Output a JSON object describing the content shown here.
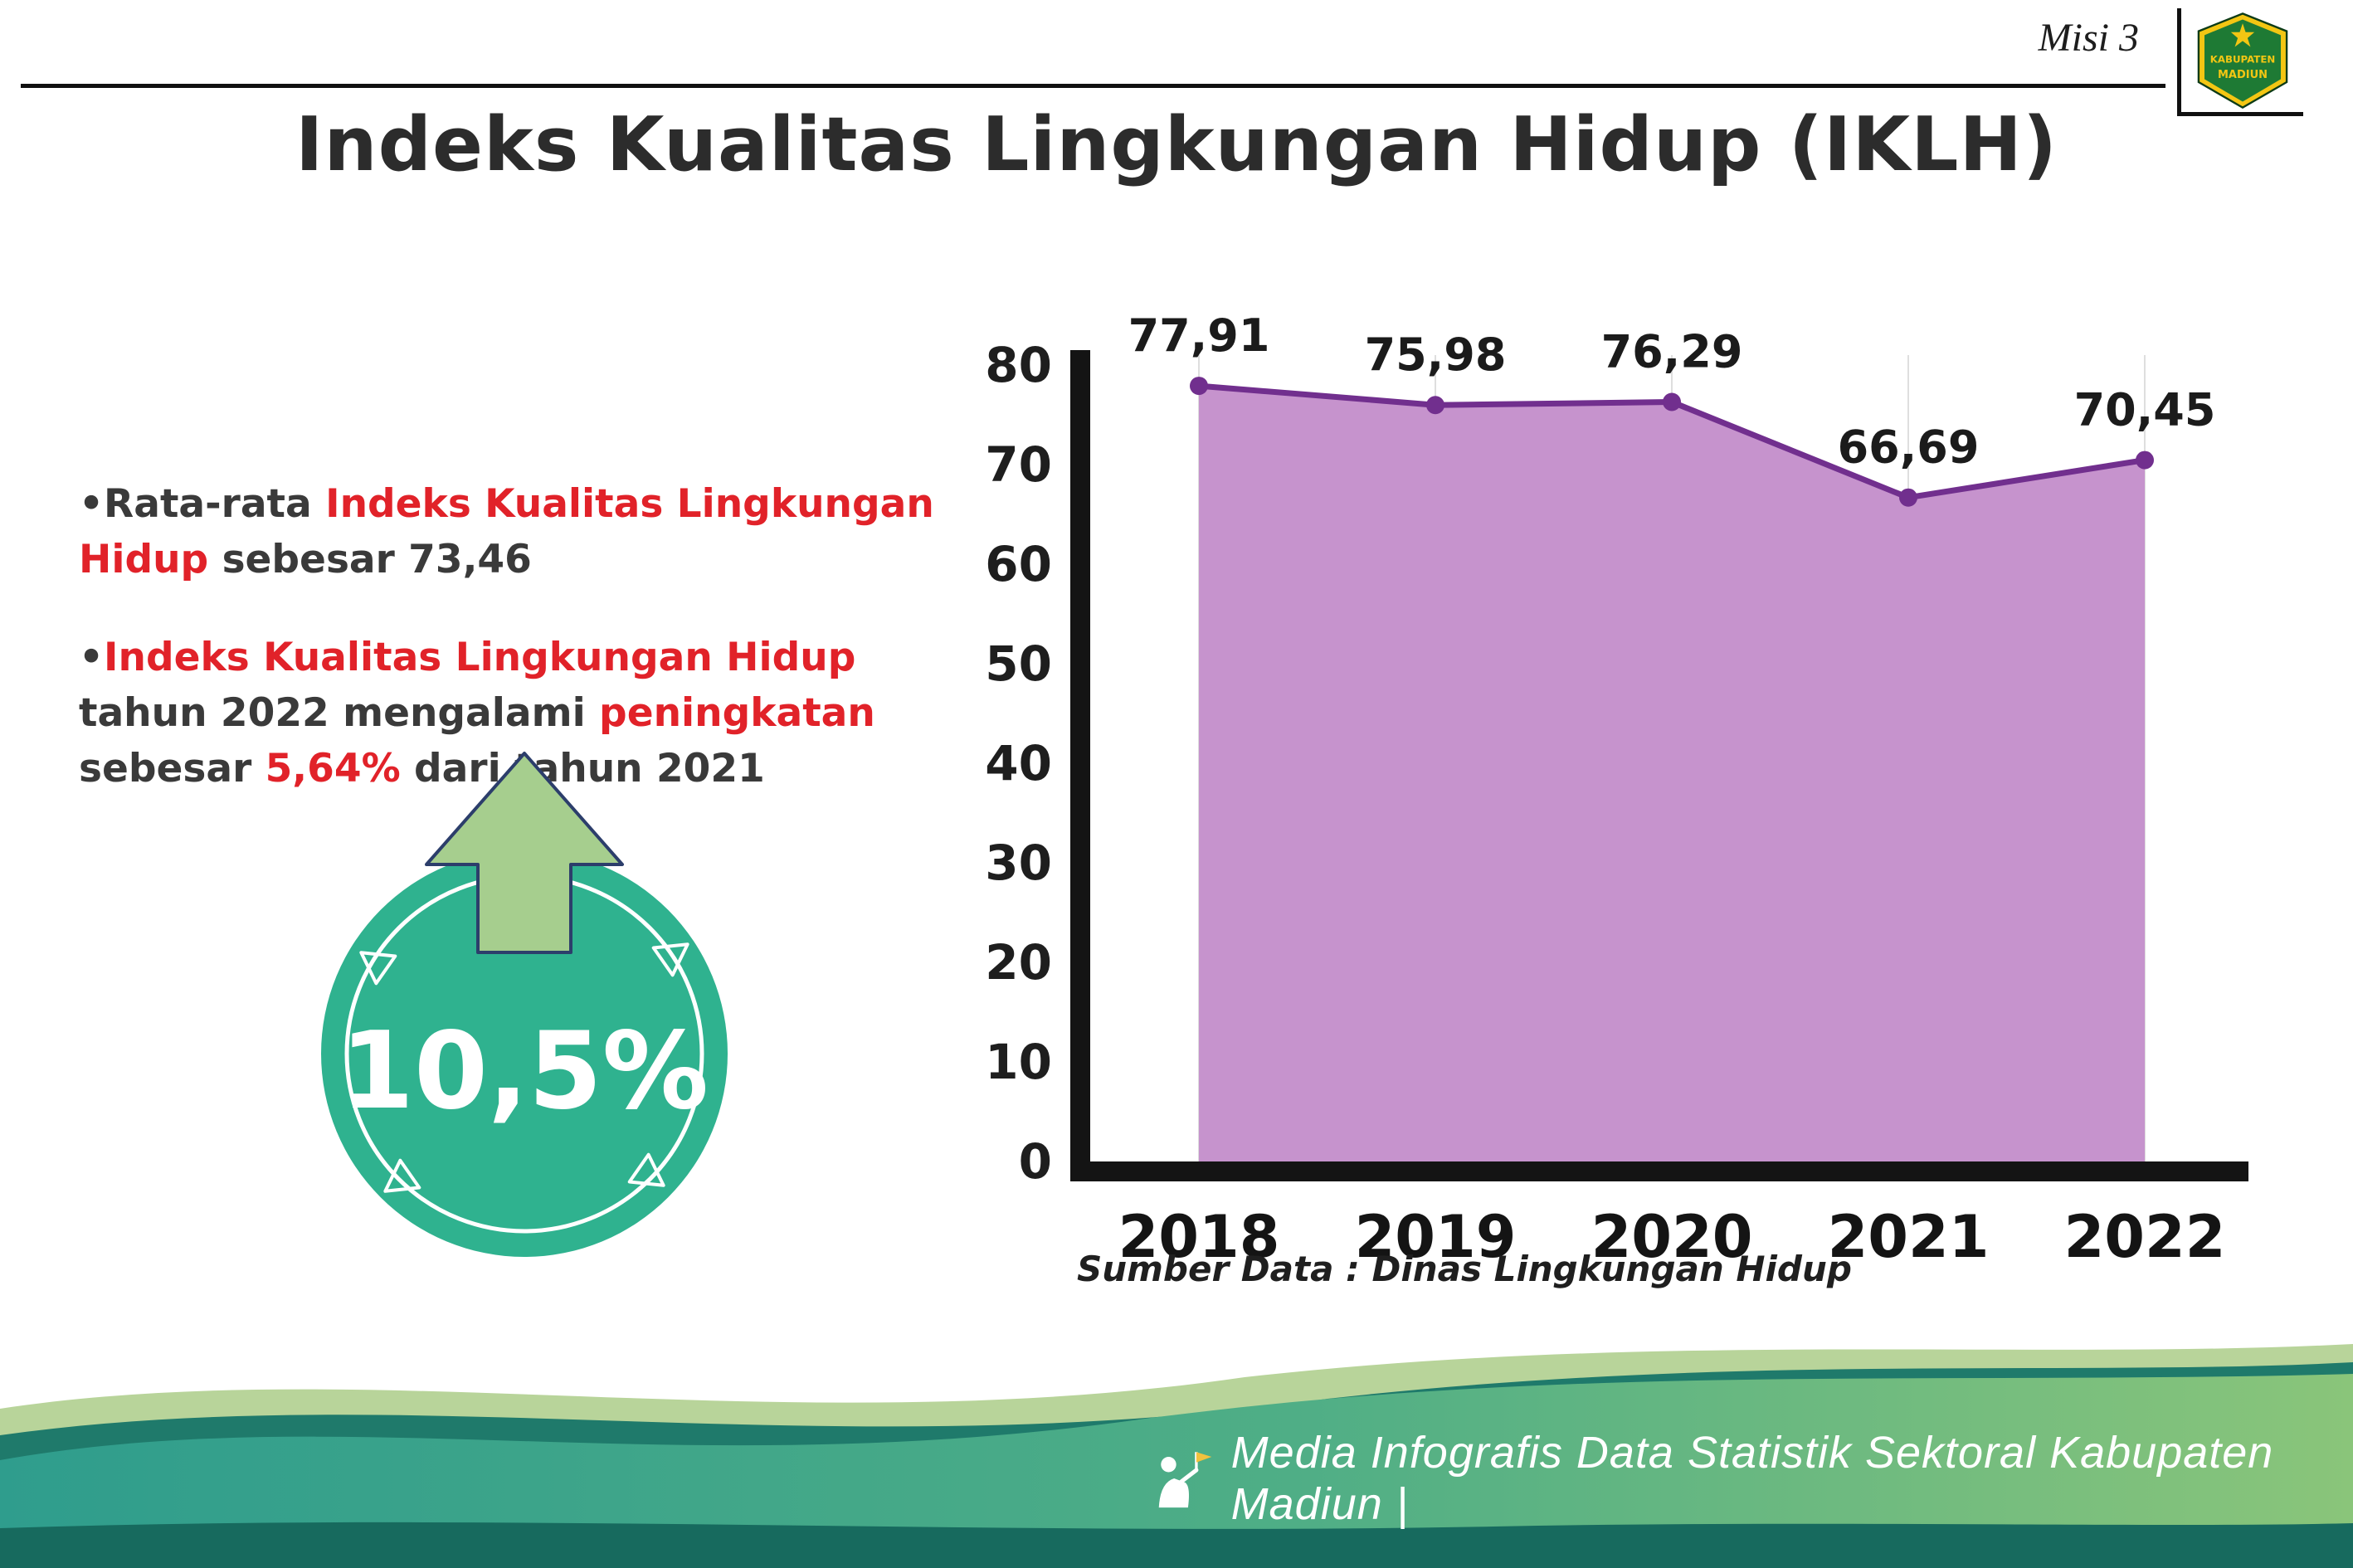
{
  "colors": {
    "accent_red": "#e12229",
    "badge_teal": "#2fb28f",
    "arrow_green": "#a6ce8e",
    "arrow_outline": "#2c3e6b",
    "footer_teal": "#2f9d8d",
    "footer_green": "#8ac57a",
    "footer_dark": "#176a5e",
    "footer_light_green": "#b8d49a",
    "footer_accent_teal": "#1f7a6b"
  },
  "header": {
    "misi": "Misi 3",
    "title": "Indeks Kualitas Lingkungan Hidup (IKLH)",
    "logo_top": "KABUPATEN",
    "logo_bottom": "MADIUN"
  },
  "bullets": {
    "char": "•",
    "b1": {
      "pre": "Rata-rata ",
      "highlight": "Indeks Kualitas Lingkungan Hidup",
      "post": " sebesar 73,46"
    },
    "b2": {
      "highlight1": "Indeks Kualitas Lingkungan Hidup",
      "mid1": " tahun 2022 mengalami ",
      "highlight2": "peningkatan",
      "mid2": " sebesar ",
      "highlight3": "5,64%",
      "post": " dari tahun 2021"
    }
  },
  "badge": {
    "value": "10,5%"
  },
  "chart_data": {
    "type": "area",
    "categories": [
      "2018",
      "2019",
      "2020",
      "2021",
      "2022"
    ],
    "values": [
      77.91,
      75.98,
      76.29,
      66.69,
      70.45
    ],
    "value_labels": [
      "77,91",
      "75,98",
      "76,29",
      "66,69",
      "70,45"
    ],
    "ylim": [
      0,
      80
    ],
    "ytick_step": 10,
    "grid": "vertical-light",
    "legend": "none",
    "title": "",
    "xlabel": "",
    "ylabel": "",
    "line_color": "#712f8e",
    "fill_color": "#c693cd",
    "label_color": "#1b1b1b",
    "axis_color": "#141414"
  },
  "source": "Sumber Data : Dinas Lingkungan Hidup",
  "footer": {
    "text": "Media Infografis Data Statistik Sektoral Kabupaten Madiun |"
  }
}
